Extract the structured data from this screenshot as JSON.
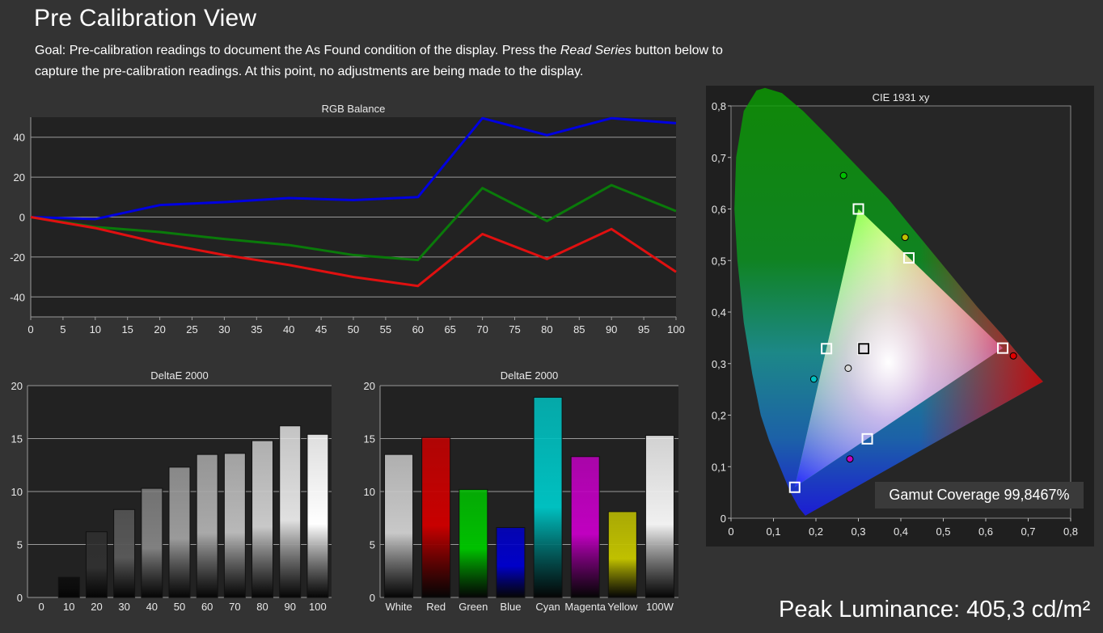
{
  "header": {
    "title": "Pre Calibration View",
    "goal_pre": "Goal: Pre-calibration readings to document the As Found condition of the display. Press the ",
    "goal_em": "Read Series",
    "goal_post": " button below to capture the pre-calibration readings. At this point, no adjustments are being made to the display."
  },
  "gamut": {
    "label": "Gamut Coverage 99,8467%"
  },
  "peak": {
    "label": "Peak Luminance: 405,3 cd/m²"
  },
  "chart_data": [
    {
      "type": "line",
      "title": "RGB Balance",
      "x": [
        0,
        10,
        20,
        30,
        40,
        50,
        60,
        70,
        80,
        90,
        100
      ],
      "xticks": [
        "0",
        "5",
        "10",
        "15",
        "20",
        "25",
        "30",
        "35",
        "40",
        "45",
        "50",
        "55",
        "60",
        "65",
        "70",
        "75",
        "80",
        "85",
        "90",
        "95",
        "100"
      ],
      "yticks": [
        "40",
        "20",
        "0",
        "-20",
        "-40"
      ],
      "xlim": [
        0,
        100
      ],
      "ylim": [
        -50,
        50
      ],
      "grid": true,
      "series": [
        {
          "color": "#0000e0",
          "values": [
            0,
            -1,
            6,
            7.5,
            9.5,
            8.5,
            10,
            49.5,
            41,
            49.5,
            47
          ]
        },
        {
          "color": "#0a7a0a",
          "values": [
            0,
            -5,
            -7.5,
            -11,
            -14,
            -19,
            -21.5,
            14.5,
            -2,
            16,
            3
          ]
        },
        {
          "color": "#e01010",
          "values": [
            0,
            -5.5,
            -13,
            -19,
            -24,
            -30,
            -34.5,
            -8.5,
            -21,
            -6,
            -27.5
          ]
        }
      ]
    },
    {
      "type": "bar",
      "title": "DeltaE 2000",
      "categories": [
        "0",
        "10",
        "20",
        "30",
        "40",
        "50",
        "60",
        "70",
        "80",
        "90",
        "100"
      ],
      "values": [
        0,
        1.9,
        6.2,
        8.3,
        10.3,
        12.3,
        13.5,
        13.6,
        14.8,
        16.2,
        15.4
      ],
      "colors": [
        "#000000",
        "#0c0c0c",
        "#303030",
        "#585858",
        "#808080",
        "#9a9a9a",
        "#a9a9a9",
        "#b8b8b8",
        "#c8c8c8",
        "#e0e0e0",
        "#ffffff"
      ],
      "yticks": [
        "20",
        "15",
        "10",
        "5",
        "0"
      ],
      "ylim": [
        0,
        20
      ]
    },
    {
      "type": "bar",
      "title": "DeltaE 2000",
      "categories": [
        "White",
        "Red",
        "Green",
        "Blue",
        "Cyan",
        "Magenta",
        "Yellow",
        "100W"
      ],
      "values": [
        13.5,
        15.1,
        10.2,
        6.6,
        18.9,
        13.3,
        8.1,
        15.3
      ],
      "colors": [
        "#c8c8c8",
        "#c80000",
        "#00c000",
        "#0000c8",
        "#00c0c0",
        "#c000c0",
        "#c0c000",
        "#f0f0f0"
      ],
      "yticks": [
        "20",
        "15",
        "10",
        "5",
        "0"
      ],
      "ylim": [
        0,
        20
      ]
    },
    {
      "type": "scatter",
      "title": "CIE 1931 xy",
      "xticks": [
        "0",
        "0,1",
        "0,2",
        "0,3",
        "0,4",
        "0,5",
        "0,6",
        "0,7",
        "0,8"
      ],
      "yticks": [
        "0,8",
        "0,7",
        "0,6",
        "0,5",
        "0,4",
        "0,3",
        "0,2",
        "0,1",
        "0"
      ],
      "xlim": [
        0,
        0.8
      ],
      "ylim": [
        0,
        0.8
      ],
      "targets": [
        {
          "x": 0.64,
          "y": 0.33
        },
        {
          "x": 0.3,
          "y": 0.6
        },
        {
          "x": 0.15,
          "y": 0.06
        },
        {
          "x": 0.225,
          "y": 0.329
        },
        {
          "x": 0.321,
          "y": 0.154
        },
        {
          "x": 0.419,
          "y": 0.505
        },
        {
          "x": 0.3127,
          "y": 0.329
        }
      ],
      "measured": [
        {
          "x": 0.665,
          "y": 0.315,
          "color": "#e00000"
        },
        {
          "x": 0.265,
          "y": 0.665,
          "color": "#00c000"
        },
        {
          "x": 0.41,
          "y": 0.545,
          "color": "#c0c000"
        },
        {
          "x": 0.195,
          "y": 0.27,
          "color": "#00c0c0"
        },
        {
          "x": 0.28,
          "y": 0.115,
          "color": "#c000c0"
        },
        {
          "x": 0.276,
          "y": 0.291,
          "color": "#d8d8d8"
        }
      ]
    }
  ]
}
